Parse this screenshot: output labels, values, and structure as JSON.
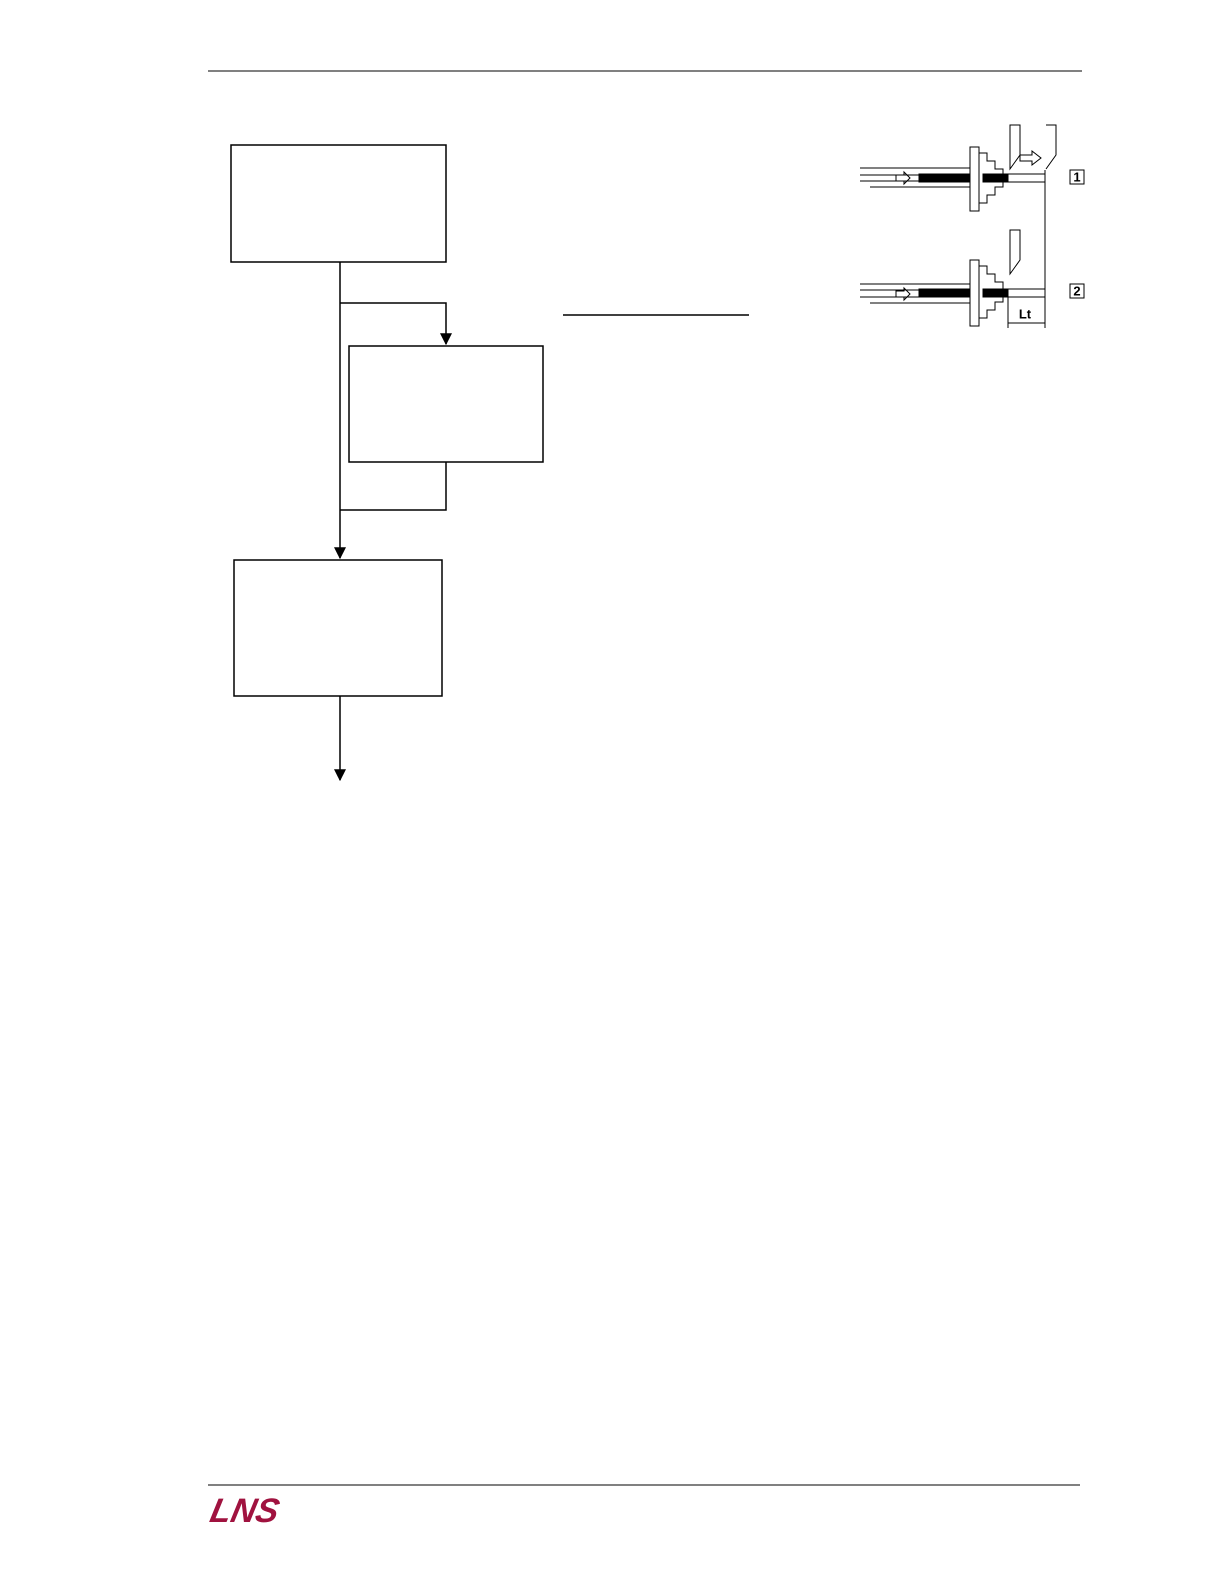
{
  "diagram": {
    "labels": [
      "1",
      "2",
      "Lt"
    ]
  },
  "footer": {
    "logo": "LNS"
  }
}
